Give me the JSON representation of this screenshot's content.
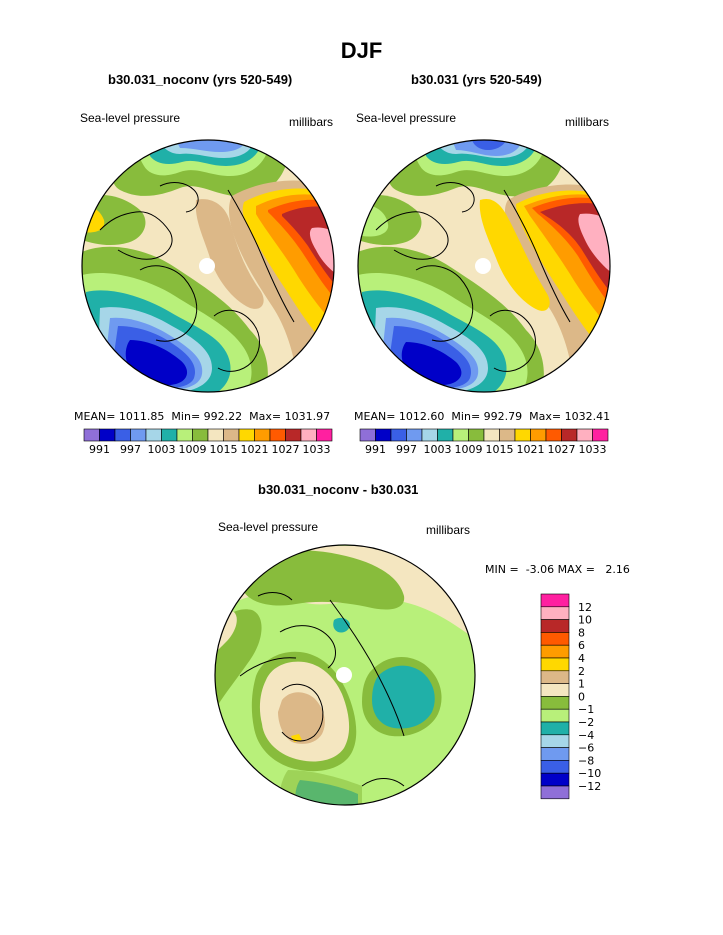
{
  "chart_data": [
    {
      "type": "heatmap",
      "projection": "north-polar-stereographic",
      "title": "b30.031_noconv (yrs 520-549)",
      "left_label": "Sea-level pressure",
      "right_label": "millibars",
      "stats": {
        "mean_label": "MEAN=",
        "mean": "1011.85",
        "min_label": "Min=",
        "min": "992.22",
        "max_label": "Max=",
        "max": "1031.97"
      },
      "contour_levels": [
        991,
        994,
        997,
        1000,
        1003,
        1006,
        1009,
        1012,
        1015,
        1018,
        1021,
        1024,
        1027,
        1030,
        1033
      ],
      "colorbar_tick_labels": [
        "991",
        "997",
        "1003",
        "1009",
        "1015",
        "1021",
        "1027",
        "1033"
      ]
    },
    {
      "type": "heatmap",
      "projection": "north-polar-stereographic",
      "title": "b30.031 (yrs 520-549)",
      "left_label": "Sea-level pressure",
      "right_label": "millibars",
      "stats": {
        "mean_label": "MEAN=",
        "mean": "1012.60",
        "min_label": "Min=",
        "min": "992.79",
        "max_label": "Max=",
        "max": "1032.41"
      },
      "contour_levels": [
        991,
        994,
        997,
        1000,
        1003,
        1006,
        1009,
        1012,
        1015,
        1018,
        1021,
        1024,
        1027,
        1030,
        1033
      ],
      "colorbar_tick_labels": [
        "991",
        "997",
        "1003",
        "1009",
        "1015",
        "1021",
        "1027",
        "1033"
      ]
    },
    {
      "type": "heatmap",
      "projection": "north-polar-stereographic",
      "title": "b30.031_noconv - b30.031",
      "left_label": "Sea-level pressure",
      "right_label": "millibars",
      "stats": {
        "min_label": "MIN =",
        "min": "-3.06",
        "max_label": "MAX =",
        "max": "2.16"
      },
      "contour_levels": [
        -12,
        -10,
        -8,
        -6,
        -4,
        -2,
        -1,
        0,
        1,
        2,
        4,
        6,
        8,
        10,
        12
      ],
      "colorbar_tick_labels": [
        "12",
        "10",
        "8",
        "6",
        "4",
        "2",
        "1",
        "0",
        "−1",
        "−2",
        "−4",
        "−6",
        "−8",
        "−10",
        "−12"
      ]
    }
  ],
  "page": {
    "main_title": "DJF"
  },
  "colors": {
    "abs_palette": [
      "#8f6fd8",
      "#0000c8",
      "#3a5fe6",
      "#6f9af0",
      "#a6d6e8",
      "#20b0a8",
      "#b8f07a",
      "#88bc3c",
      "#f4e6c0",
      "#dcb888",
      "#ffd800",
      "#ff9c00",
      "#ff5a00",
      "#b82828",
      "#ffb0c0",
      "#ff20a0"
    ],
    "diff_palette": [
      "#ff20a0",
      "#ffb0c0",
      "#b82828",
      "#ff5a00",
      "#ff9c00",
      "#ffd800",
      "#dcb888",
      "#f4e6c0",
      "#88bc3c",
      "#b8f07a",
      "#20b0a8",
      "#a6d6e8",
      "#6f9af0",
      "#3a5fe6",
      "#0000c8",
      "#8f6fd8"
    ]
  }
}
